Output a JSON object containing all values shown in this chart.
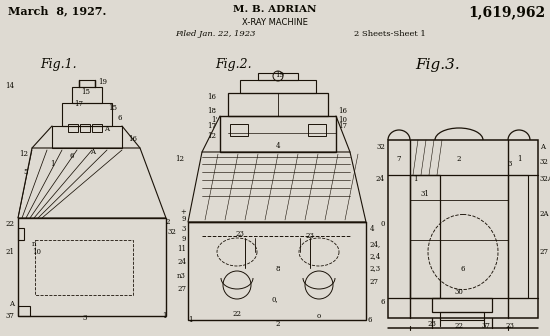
{
  "bg_color": "#dedad2",
  "patent_date": "March  8, 1927.",
  "patent_number": "1,619,962",
  "inventor": "M. B. ADRIAN",
  "invention": "X-RAY MACHINE",
  "filed": "Filed Jan. 22, 1923",
  "sheets": "2 Sheets-Sheet 1",
  "line_color": "#1a1208",
  "text_color": "#0a0800",
  "fig_width": 550,
  "fig_height": 336
}
